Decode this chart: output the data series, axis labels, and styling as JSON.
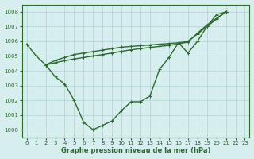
{
  "x": [
    0,
    1,
    2,
    3,
    4,
    5,
    6,
    7,
    8,
    9,
    10,
    11,
    12,
    13,
    14,
    15,
    16,
    17,
    18,
    19,
    20,
    21,
    22,
    23
  ],
  "line2": [
    1005.8,
    1005.0,
    1004.4,
    1003.6,
    1003.1,
    1002.0,
    1000.5,
    1000.0,
    1000.3,
    1000.6,
    1001.3,
    1001.9,
    1001.9,
    1002.3,
    1004.1,
    1004.9,
    1005.9,
    1005.2,
    1006.0,
    1007.0,
    1007.8,
    1008.0,
    null,
    null
  ],
  "line3": [
    null,
    null,
    1004.4,
    1004.7,
    1004.9,
    1005.1,
    1005.2,
    1005.3,
    1005.4,
    1005.5,
    1005.6,
    1005.65,
    1005.7,
    1005.75,
    1005.8,
    1005.85,
    1005.9,
    1006.0,
    1006.5,
    1007.0,
    1007.5,
    1008.0,
    null,
    null
  ],
  "line4": [
    null,
    null,
    1004.4,
    1004.55,
    1004.68,
    1004.8,
    1004.9,
    1005.0,
    1005.1,
    1005.2,
    1005.32,
    1005.42,
    1005.5,
    1005.58,
    1005.65,
    1005.72,
    1005.82,
    1005.95,
    1006.55,
    1007.1,
    1007.55,
    1008.0,
    null,
    null
  ],
  "line_color": "#2d6a2d",
  "bg_color": "#d6eeee",
  "grid_color": "#b0d4d4",
  "xlabel": "Graphe pression niveau de la mer (hPa)",
  "ylim": [
    999.5,
    1008.5
  ],
  "xlim": [
    -0.5,
    23.5
  ],
  "yticks": [
    1000,
    1001,
    1002,
    1003,
    1004,
    1005,
    1006,
    1007,
    1008
  ],
  "xticks": [
    0,
    1,
    2,
    3,
    4,
    5,
    6,
    7,
    8,
    9,
    10,
    11,
    12,
    13,
    14,
    15,
    16,
    17,
    18,
    19,
    20,
    21,
    22,
    23
  ],
  "marker": "+",
  "markersize": 3,
  "linewidth": 1.0
}
